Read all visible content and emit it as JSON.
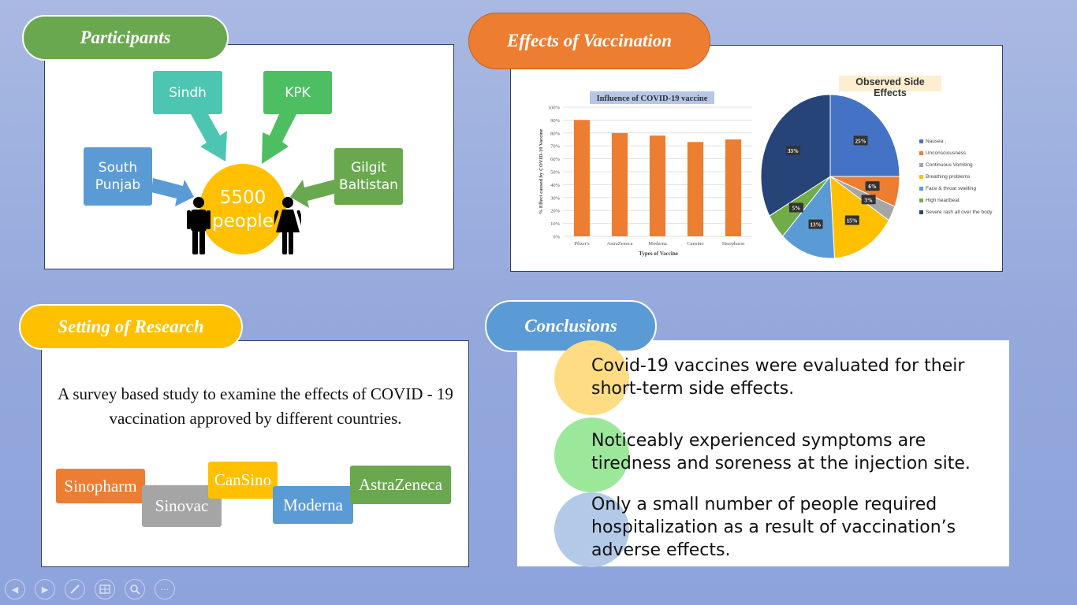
{
  "participants": {
    "title": "Participants",
    "regions": [
      "Sindh",
      "KPK",
      "South\nPunjab",
      "Gilgit\nBaltistan"
    ],
    "center_value": "5500",
    "center_label": "people"
  },
  "effects": {
    "title": "Effects of Vaccination"
  },
  "chart_data": [
    {
      "type": "bar",
      "title": "Influence of COVID-19 vaccine",
      "xlabel": "Types of Vaccine",
      "ylabel": "% Effect caused by COVID-19 Vaccine",
      "categories": [
        "Pfizer's",
        "AstraZeneca",
        "Moderna",
        "Cansino",
        "Sinopharm"
      ],
      "values": [
        90,
        80,
        78,
        73,
        75
      ],
      "ylim": [
        0,
        100
      ],
      "yticks": [
        "0%",
        "10%",
        "20%",
        "30%",
        "40%",
        "50%",
        "60%",
        "70%",
        "80%",
        "90%",
        "100%"
      ],
      "grid": true,
      "color": "#ed7d31"
    },
    {
      "type": "pie",
      "title": "Observed Side Effects",
      "labels": [
        "Nausea ,",
        "Unconsciousness",
        "Continuous Vomiting",
        "Breathing problems",
        "Face & throat swelling",
        "High heartbeat",
        "Severe rash all over the body"
      ],
      "values": [
        25,
        6,
        3,
        15,
        13,
        5,
        33
      ],
      "value_labels": [
        "25%",
        "6%",
        "3%",
        "15%",
        "13%",
        "5%",
        "33%"
      ],
      "colors": [
        "#4472c4",
        "#ed7d31",
        "#a5a5a5",
        "#ffc000",
        "#5b9bd5",
        "#70ad47",
        "#264478"
      ],
      "legend": "right"
    }
  ],
  "setting": {
    "title": "Setting of Research",
    "description": "A survey based study to examine the effects of COVID - 19 vaccination approved by different countries.",
    "vaccines": [
      "Sinopharm",
      "Sinovac",
      "CanSino",
      "Moderna",
      "AstraZeneca"
    ]
  },
  "conclusions": {
    "title": "Conclusions",
    "items": [
      "Covid-19 vaccines were evaluated for their\nshort-term side effects.",
      "Noticeably experienced symptoms are\ntiredness and soreness at the injection site.",
      "Only a small number of people required\nhospitalization as a result of vaccination’s\nadverse effects."
    ]
  },
  "toolbar": {
    "icons": [
      "previous-icon",
      "next-icon",
      "pen-icon",
      "slides-icon",
      "zoom-icon",
      "more-icon"
    ],
    "more_label": "···"
  },
  "colors": {
    "green": "#6aa84f",
    "orange": "#ed7d31",
    "gold": "#ffc000",
    "blue": "#5b9bd5",
    "teal": "#4cc6b0",
    "kpk_green": "#4dbf62"
  }
}
